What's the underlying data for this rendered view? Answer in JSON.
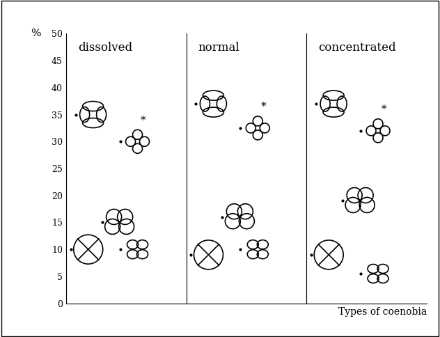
{
  "chart_data": {
    "type": "scatter",
    "ylabel": "%",
    "xlabel": "Types of coenobia",
    "categories": [
      "dissolved",
      "normal",
      "concentrated"
    ],
    "series": [
      {
        "values": [
          35,
          37,
          37
        ],
        "color": "#000000",
        "marker": "dot"
      },
      {
        "values": [
          30,
          32.5,
          32
        ],
        "color": "#000000",
        "marker": "dot",
        "annotation": "*"
      },
      {
        "values": [
          15,
          16,
          19
        ],
        "color": "#000000",
        "marker": "dot"
      },
      {
        "values": [
          10,
          9,
          9
        ],
        "color": "#000000",
        "marker": "dot"
      },
      {
        "values": [
          10,
          10,
          5.5
        ],
        "color": "#000000",
        "marker": "dot"
      }
    ],
    "ylim": [
      0,
      50
    ],
    "yticks": [
      0,
      5,
      10,
      15,
      20,
      25,
      30,
      35,
      40,
      45,
      50
    ],
    "tick_labels": "y",
    "grid": false
  }
}
